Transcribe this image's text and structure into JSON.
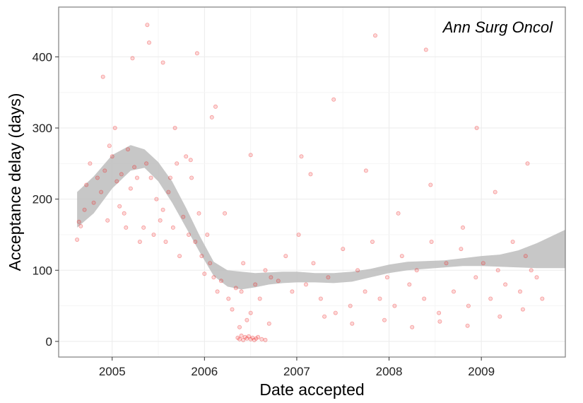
{
  "chart_data": {
    "type": "scatter",
    "title": "",
    "annotation": "Ann Surg Oncol",
    "xlabel": "Date accepted",
    "ylabel": "Acceptance delay (days)",
    "x_unit": "year",
    "xlim": [
      2004.42,
      2009.91
    ],
    "ylim": [
      -22,
      470
    ],
    "x_ticks": [
      2005,
      2006,
      2007,
      2008,
      2009
    ],
    "y_ticks": [
      0,
      100,
      200,
      300,
      400
    ],
    "x_tick_labels": [
      "2005",
      "2006",
      "2007",
      "2008",
      "2009"
    ],
    "y_tick_labels": [
      "0",
      "100",
      "200",
      "300",
      "400"
    ],
    "grid": true,
    "legend": "none",
    "colors": {
      "points": "#ee2222",
      "ribbon": "#bdbdbd",
      "panel_border": "#7f7f7f",
      "grid": "#ebebeb"
    },
    "series": [
      {
        "kind": "points",
        "x": [
          2004.62,
          2004.64,
          2004.7,
          2004.72,
          2004.76,
          2004.8,
          2004.84,
          2004.88,
          2004.92,
          2004.95,
          2004.97,
          2005.0,
          2005.03,
          2005.05,
          2005.08,
          2005.1,
          2005.13,
          2005.17,
          2005.2,
          2005.24,
          2005.27,
          2005.3,
          2005.34,
          2005.37,
          2005.4,
          2005.45,
          2005.48,
          2005.52,
          2005.55,
          2005.58,
          2005.61,
          2005.63,
          2005.66,
          2005.7,
          2005.73,
          2005.77,
          2005.8,
          2005.83,
          2005.86,
          2005.9,
          2005.94,
          2005.97,
          2006.0,
          2006.03,
          2006.06,
          2006.1,
          2006.14,
          2006.18,
          2006.22,
          2006.26,
          2006.3,
          2006.34,
          2006.38,
          2006.42,
          2006.46,
          2006.5,
          2006.55,
          2006.6,
          2006.66,
          2006.72,
          2006.8,
          2006.88,
          2006.95,
          2007.02,
          2007.1,
          2007.18,
          2007.26,
          2007.34,
          2007.42,
          2007.5,
          2007.58,
          2007.66,
          2007.74,
          2007.82,
          2007.9,
          2007.98,
          2008.06,
          2008.14,
          2008.22,
          2008.3,
          2008.38,
          2008.46,
          2008.54,
          2008.62,
          2008.7,
          2008.78,
          2008.86,
          2008.94,
          2009.02,
          2009.1,
          2009.18,
          2009.26,
          2009.34,
          2009.42,
          2009.48,
          2009.54,
          2009.6,
          2009.66,
          2004.66,
          2004.9,
          2005.15,
          2005.42,
          2005.68,
          2005.92,
          2006.12,
          2006.4,
          2006.7,
          2007.05,
          2007.4,
          2007.75,
          2008.1,
          2008.45,
          2008.8,
          2009.15,
          2009.5,
          2006.36,
          2006.38,
          2006.4,
          2006.42,
          2006.44,
          2006.46,
          2006.48,
          2006.5,
          2006.52,
          2006.54,
          2006.56,
          2006.58,
          2006.62,
          2006.66,
          2007.3,
          2007.6,
          2007.95,
          2008.25,
          2008.55,
          2008.85,
          2009.2,
          2009.45,
          2005.38,
          2005.22,
          2005.55,
          2005.85,
          2006.08,
          2006.5,
          2007.15,
          2007.85,
          2008.4,
          2008.95
        ],
        "y": [
          143,
          168,
          185,
          220,
          250,
          195,
          230,
          210,
          240,
          170,
          275,
          260,
          300,
          225,
          190,
          235,
          180,
          270,
          215,
          245,
          230,
          140,
          160,
          250,
          420,
          150,
          200,
          170,
          185,
          140,
          210,
          230,
          160,
          250,
          120,
          175,
          260,
          150,
          230,
          140,
          180,
          120,
          95,
          150,
          110,
          90,
          70,
          85,
          180,
          60,
          45,
          75,
          20,
          110,
          30,
          40,
          80,
          60,
          100,
          90,
          85,
          120,
          70,
          150,
          80,
          110,
          60,
          90,
          40,
          130,
          50,
          100,
          70,
          140,
          60,
          90,
          50,
          120,
          80,
          100,
          60,
          140,
          40,
          110,
          70,
          130,
          50,
          90,
          110,
          60,
          100,
          80,
          140,
          70,
          120,
          100,
          90,
          60,
          162,
          372,
          160,
          230,
          300,
          405,
          330,
          70,
          25,
          260,
          340,
          240,
          180,
          220,
          160,
          210,
          250,
          5,
          3,
          8,
          2,
          6,
          4,
          7,
          3,
          5,
          2,
          4,
          6,
          3,
          2,
          35,
          25,
          30,
          20,
          28,
          22,
          35,
          45,
          445,
          398,
          392,
          255,
          315,
          262,
          235,
          430,
          410,
          300
        ]
      },
      {
        "kind": "smooth-ribbon",
        "x": [
          2004.62,
          2004.8,
          2005.0,
          2005.2,
          2005.35,
          2005.5,
          2005.65,
          2005.8,
          2005.95,
          2006.1,
          2006.25,
          2006.4,
          2006.55,
          2006.7,
          2006.85,
          2007.0,
          2007.2,
          2007.4,
          2007.6,
          2007.8,
          2008.0,
          2008.2,
          2008.4,
          2008.6,
          2008.8,
          2009.0,
          2009.2,
          2009.4,
          2009.6,
          2009.91
        ],
        "ymin": [
          160,
          180,
          215,
          240,
          244,
          225,
          195,
          160,
          125,
          92,
          77,
          73,
          76,
          80,
          82,
          83,
          83,
          82,
          84,
          90,
          96,
          100,
          102,
          104,
          106,
          106,
          105,
          104,
          103,
          103
        ],
        "ymax": [
          210,
          232,
          262,
          276,
          270,
          252,
          225,
          188,
          148,
          112,
          100,
          98,
          96,
          97,
          98,
          98,
          96,
          96,
          98,
          102,
          108,
          112,
          113,
          114,
          117,
          120,
          122,
          128,
          138,
          157
        ]
      }
    ]
  }
}
